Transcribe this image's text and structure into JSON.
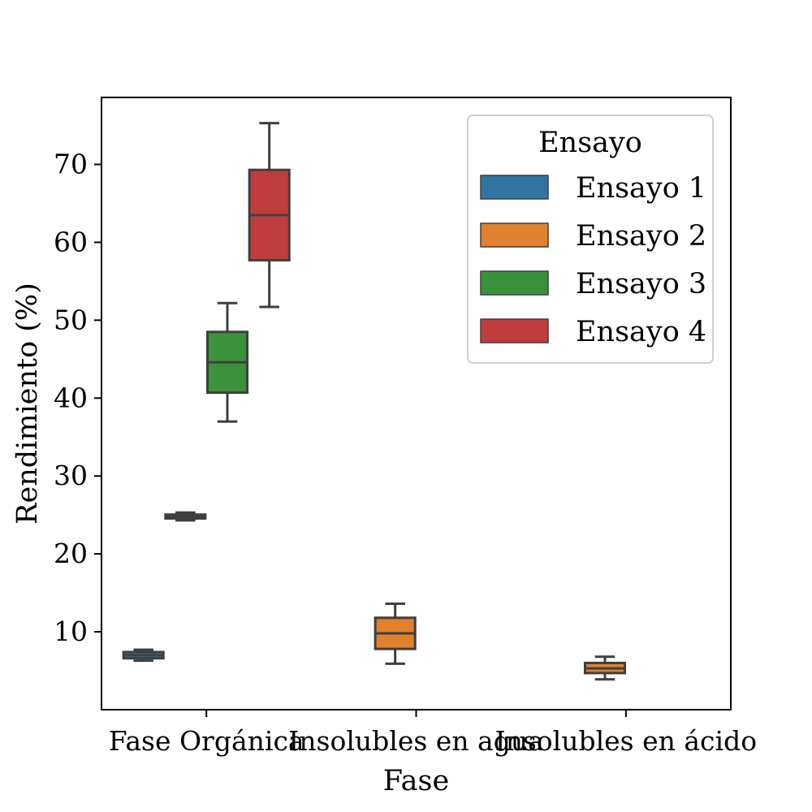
{
  "chart_data": {
    "type": "box",
    "xlabel": "Fase",
    "ylabel": "Rendimiento (%)",
    "ylim": [
      0,
      78.6
    ],
    "yticks": [
      10,
      20,
      30,
      40,
      50,
      60,
      70
    ],
    "categories": [
      "Fase Orgánica",
      "Insolubles en agua",
      "Insolubles en ácido"
    ],
    "legend": {
      "title": "Ensayo",
      "placement": "upper-right"
    },
    "series": [
      {
        "name": "Ensayo 1",
        "color": "#3274a1",
        "boxes": [
          {
            "category": "Fase Orgánica",
            "whisker_low": 6.3,
            "q1": 6.6,
            "median": 7.0,
            "q3": 7.4,
            "whisker_high": 7.7
          }
        ]
      },
      {
        "name": "Ensayo 2",
        "color": "#e1812c",
        "boxes": [
          {
            "category": "Fase Orgánica",
            "whisker_low": 24.3,
            "q1": 24.55,
            "median": 24.8,
            "q3": 25.05,
            "whisker_high": 25.3
          },
          {
            "category": "Insolubles en agua",
            "whisker_low": 5.9,
            "q1": 7.8,
            "median": 9.8,
            "q3": 11.8,
            "whisker_high": 13.6
          },
          {
            "category": "Insolubles en ácido",
            "whisker_low": 3.9,
            "q1": 4.7,
            "median": 5.3,
            "q3": 6.0,
            "whisker_high": 6.8
          }
        ]
      },
      {
        "name": "Ensayo 3",
        "color": "#3a923a",
        "boxes": [
          {
            "category": "Fase Orgánica",
            "whisker_low": 37.0,
            "q1": 40.7,
            "median": 44.6,
            "q3": 48.5,
            "whisker_high": 52.2
          }
        ]
      },
      {
        "name": "Ensayo 4",
        "color": "#c03d3e",
        "boxes": [
          {
            "category": "Fase Orgánica",
            "whisker_low": 51.7,
            "q1": 57.7,
            "median": 63.5,
            "q3": 69.3,
            "whisker_high": 75.3
          }
        ]
      }
    ]
  }
}
